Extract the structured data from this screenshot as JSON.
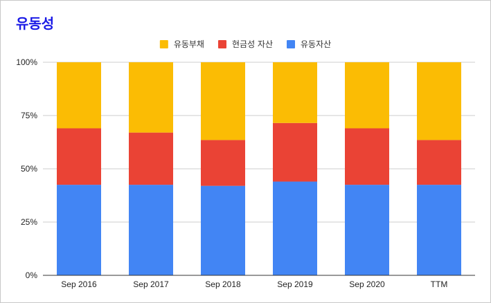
{
  "chart_data": {
    "type": "bar",
    "stacked": true,
    "normalized": true,
    "title": "유동성",
    "categories": [
      "Sep 2016",
      "Sep 2017",
      "Sep 2018",
      "Sep 2019",
      "Sep 2020",
      "TTM"
    ],
    "series": [
      {
        "name": "유동자산",
        "color": "#4285f4",
        "values": [
          42.5,
          42.5,
          42.0,
          44.0,
          42.5,
          42.5
        ]
      },
      {
        "name": "현금성 자산",
        "color": "#ea4335",
        "values": [
          26.5,
          24.5,
          21.5,
          27.5,
          26.5,
          21.0
        ]
      },
      {
        "name": "유동부채",
        "color": "#fbbc04",
        "values": [
          31.0,
          33.0,
          36.5,
          28.5,
          31.0,
          36.5
        ]
      }
    ],
    "legend_order": [
      "유동부채",
      "현금성 자산",
      "유동자산"
    ],
    "legend_position": "top",
    "yticks": [
      "0%",
      "25%",
      "50%",
      "75%",
      "100%"
    ],
    "ylim": [
      0,
      100
    ],
    "grid": true
  }
}
